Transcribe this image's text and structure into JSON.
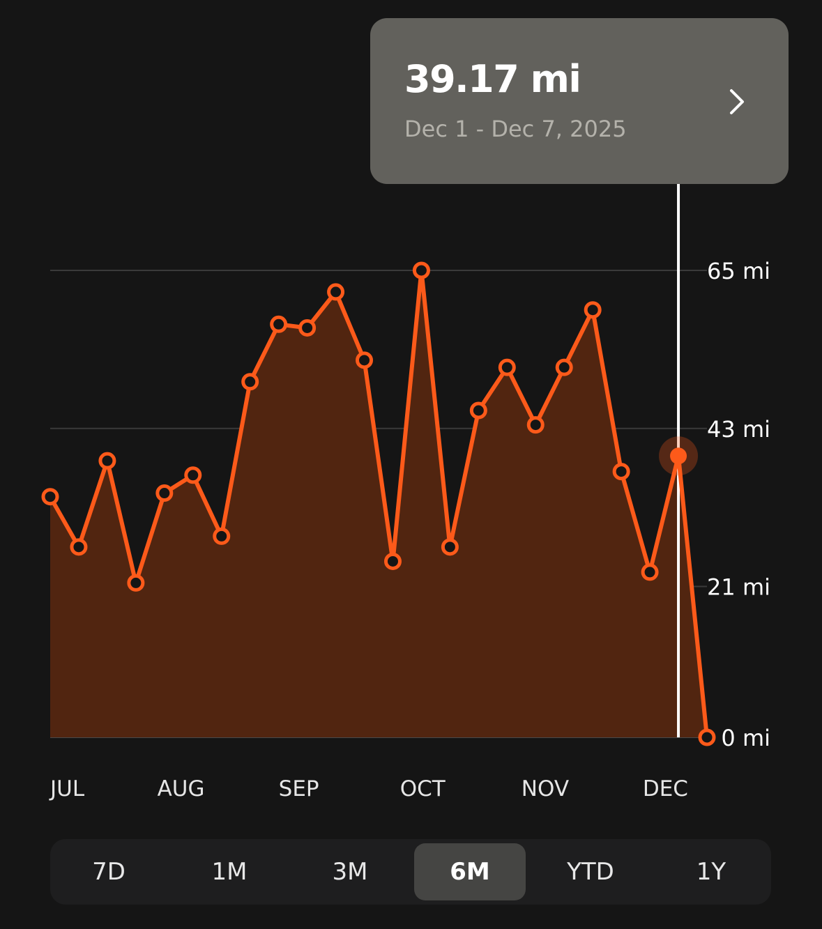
{
  "tooltip": {
    "value": "39.17 mi",
    "range": "Dec 1 - Dec 7, 2025"
  },
  "time_range": {
    "options": [
      "7D",
      "1M",
      "3M",
      "6M",
      "YTD",
      "1Y"
    ],
    "selected": "6M"
  },
  "colors": {
    "line": "#fc5a1a",
    "area": "#512510",
    "background": "#151515",
    "cursor": "#ffffff"
  },
  "chart_data": {
    "type": "area",
    "unit": "mi",
    "weekly_miles": [
      33.5,
      26.5,
      38.5,
      21.5,
      34.0,
      36.5,
      28.0,
      49.5,
      57.5,
      57.0,
      62.0,
      52.5,
      24.5,
      65.0,
      26.5,
      45.5,
      51.5,
      43.5,
      51.5,
      59.5,
      37.0,
      23.0,
      39.17,
      0.0
    ],
    "selected_index": 22,
    "x_tick_labels": [
      "JUL",
      "AUG",
      "SEP",
      "OCT",
      "NOV",
      "DEC"
    ],
    "x_tick_positions": [
      0,
      3.75,
      8,
      12.25,
      16.5,
      20.75
    ],
    "y_ticks": [
      0,
      21,
      43,
      65
    ],
    "y_tick_labels": [
      "0 mi",
      "21 mi",
      "43 mi",
      "65 mi"
    ],
    "ylim": [
      0,
      65
    ],
    "grid": true,
    "legend": "none"
  }
}
